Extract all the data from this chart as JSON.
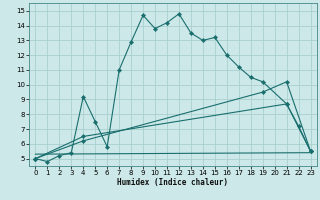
{
  "xlabel": "Humidex (Indice chaleur)",
  "bg_color": "#cce8e8",
  "line_color": "#1a6e6e",
  "grid_color": "#aacfcf",
  "xlim": [
    -0.5,
    23.5
  ],
  "ylim": [
    4.5,
    15.5
  ],
  "yticks": [
    5,
    6,
    7,
    8,
    9,
    10,
    11,
    12,
    13,
    14,
    15
  ],
  "xticks": [
    0,
    1,
    2,
    3,
    4,
    5,
    6,
    7,
    8,
    9,
    10,
    11,
    12,
    13,
    14,
    15,
    16,
    17,
    18,
    19,
    20,
    21,
    22,
    23
  ],
  "line1_x": [
    0,
    1,
    2,
    3,
    4,
    5,
    6,
    7,
    8,
    9,
    10,
    11,
    12,
    13,
    14,
    15,
    16,
    17,
    18,
    19,
    21,
    22,
    23
  ],
  "line1_y": [
    5,
    4.8,
    5.2,
    5.4,
    9.2,
    7.5,
    5.8,
    11.0,
    12.9,
    14.7,
    13.8,
    14.2,
    14.8,
    13.5,
    13.0,
    13.2,
    12.0,
    11.2,
    10.5,
    10.2,
    8.7,
    7.2,
    5.5
  ],
  "line2_x": [
    0,
    4,
    19,
    21,
    23
  ],
  "line2_y": [
    5,
    6.2,
    9.5,
    10.2,
    5.5
  ],
  "line3_x": [
    0,
    4,
    21,
    23
  ],
  "line3_y": [
    5,
    6.5,
    8.7,
    5.5
  ],
  "line4_x": [
    0,
    23
  ],
  "line4_y": [
    5.3,
    5.4
  ]
}
